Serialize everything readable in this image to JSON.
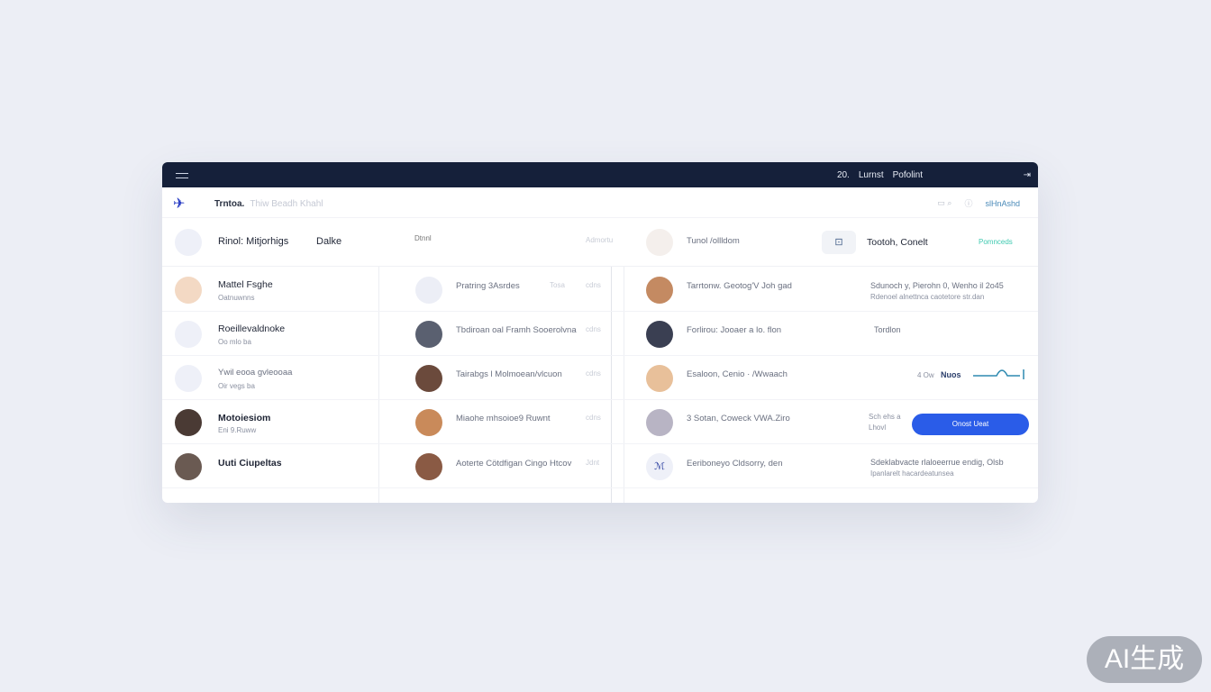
{
  "topbar": {
    "nav": [
      "20.",
      "Lurnst",
      "Pofolint"
    ]
  },
  "toolbar": {
    "title": "Trntoa.",
    "crumb": "Thiw Beadh Khahl",
    "right_label": "slHnAshd"
  },
  "header": {
    "title": "Rinol: Mitjorhigs",
    "col2": "Dalke",
    "col3": "Dtnnl",
    "col4": "Admortu",
    "col5_name": "Tunol /ollldom",
    "col6_name": "Tootoh, Conelt",
    "col7_status": "Pomnceds",
    "status_color": "#3ec9b0"
  },
  "rows": [
    {
      "name": "Mattel Fsghe",
      "sub": "Oatnuwnns",
      "mid": "Pratring 3Asrdes",
      "mid_meta": "Tosa",
      "time": "cdns",
      "person": "Tarrtonw. Geotog'V Joh gad",
      "note": "Sdunoch y, Pierohn 0, Wenho il 2o45",
      "note2": "Rdenoel alnettnca caotetore str.dan"
    },
    {
      "name": "Roeillevaldnoke",
      "sub": "Oo mlo ba",
      "mid": "Tbdiroan oal Framh Sooerolvna",
      "mid_meta": "",
      "time": "cdns",
      "person": "Forlirou: Jooaer a lo. flon",
      "note": "Tordlon",
      "note2": ""
    },
    {
      "name": "Ywil eooa gvleooaa",
      "sub": "Oir vegs ba",
      "mid": "Tairabgs l Molmoean/vlcuon",
      "mid_meta": "",
      "time": "cdns",
      "person": "Esaloon, Cenio · /Wwaach",
      "note": "4 Ow",
      "note2": "Nuos"
    },
    {
      "name": "Motoiesiom",
      "sub": "Eni 9.Ruww",
      "mid": "Miaohe mhsoioe9 Ruwnt",
      "mid_meta": "",
      "time": "cdns",
      "person": "3 Sotan, Coweck VWA.Ziro",
      "note": "Sch ehs a",
      "note2": "Lhovl"
    },
    {
      "name": "Uuti Ciupeltas",
      "sub": "",
      "mid": "Aoterte Cötdfigan Cingo Htcov",
      "mid_meta": "",
      "time": "Jdnt",
      "person": "Eeriboneyo Cldsorry, den",
      "note": "Sdeklabvacte rlaloeerrue endig, Olsb",
      "note2": "Ipanlarelt hacardeatunsea"
    }
  ],
  "action_button": "Onost Ueat",
  "colors": {
    "topbar": "#15203a",
    "accent": "#2a5ce8",
    "background": "#eceef5"
  },
  "watermark": "AI生成"
}
